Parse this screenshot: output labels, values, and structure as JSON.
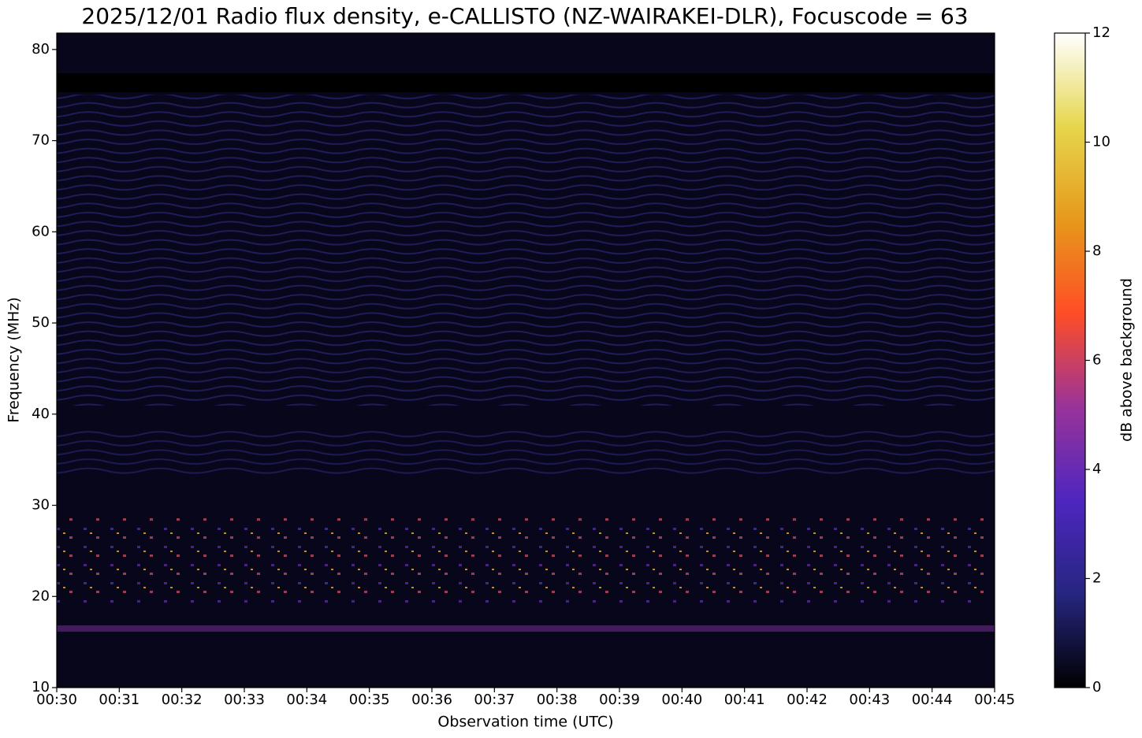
{
  "chart_data": {
    "type": "spectrogram",
    "title": "2025/12/01 Radio flux density, e-CALLISTO (NZ-WAIRAKEI-DLR), Focuscode = 63",
    "x_label": "Observation time (UTC)",
    "y_label": "Frequency (MHz)",
    "xlim": [
      30,
      45
    ],
    "xticks": [
      {
        "value": 30,
        "label": "00:30"
      },
      {
        "value": 31,
        "label": "00:31"
      },
      {
        "value": 32,
        "label": "00:32"
      },
      {
        "value": 33,
        "label": "00:33"
      },
      {
        "value": 34,
        "label": "00:34"
      },
      {
        "value": 35,
        "label": "00:35"
      },
      {
        "value": 36,
        "label": "00:36"
      },
      {
        "value": 37,
        "label": "00:37"
      },
      {
        "value": 38,
        "label": "00:38"
      },
      {
        "value": 39,
        "label": "00:39"
      },
      {
        "value": 40,
        "label": "00:40"
      },
      {
        "value": 41,
        "label": "00:41"
      },
      {
        "value": 42,
        "label": "00:42"
      },
      {
        "value": 43,
        "label": "00:43"
      },
      {
        "value": 44,
        "label": "00:44"
      },
      {
        "value": 45,
        "label": "00:45"
      }
    ],
    "ylim": [
      10,
      81.8
    ],
    "yticks": [
      10,
      20,
      30,
      40,
      50,
      60,
      70,
      80
    ],
    "colorbar": {
      "label": "dB above background",
      "lim": [
        0,
        12
      ],
      "ticks": [
        0,
        2,
        4,
        6,
        8,
        10,
        12
      ],
      "colormap": [
        "#000000",
        "#262680",
        "#4d26bf",
        "#993399",
        "#ff4d26",
        "#e6991a",
        "#e6d64d",
        "#ffffff"
      ]
    }
  }
}
